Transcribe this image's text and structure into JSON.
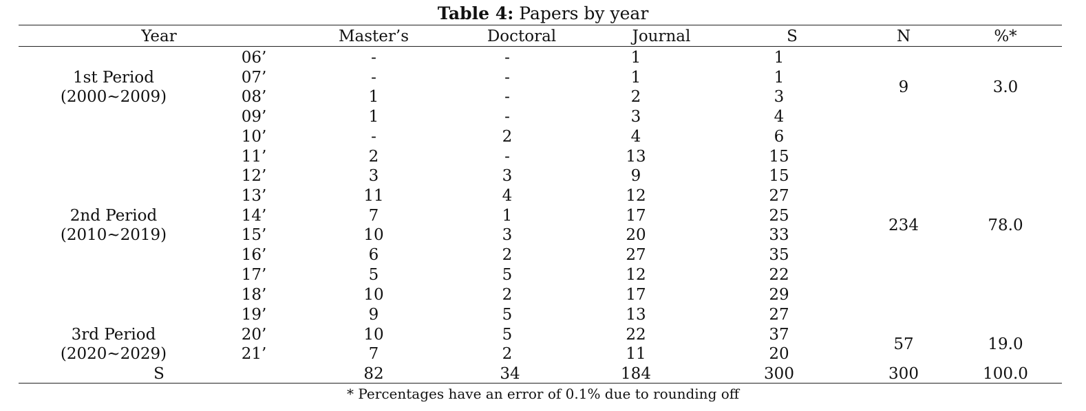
{
  "caption": {
    "label": "Table 4:",
    "title": "Papers by year"
  },
  "columns": [
    "Year",
    "Master’s",
    "Doctoral",
    "Journal",
    "S",
    "N",
    "%*"
  ],
  "periods": [
    {
      "name": "1st Period",
      "range": "(2000~2009)",
      "n": "9",
      "pct": "3.0"
    },
    {
      "name": "2nd Period",
      "range": "(2010~2019)",
      "n": "234",
      "pct": "78.0"
    },
    {
      "name": "3rd Period",
      "range": "(2020~2029)",
      "n": "57",
      "pct": "19.0"
    }
  ],
  "rows": [
    {
      "year": "06’",
      "masters": "-",
      "doctoral": "-",
      "journal": "1",
      "s": "1"
    },
    {
      "year": "07’",
      "masters": "-",
      "doctoral": "-",
      "journal": "1",
      "s": "1"
    },
    {
      "year": "08’",
      "masters": "1",
      "doctoral": "-",
      "journal": "2",
      "s": "3"
    },
    {
      "year": "09’",
      "masters": "1",
      "doctoral": "-",
      "journal": "3",
      "s": "4"
    },
    {
      "year": "10’",
      "masters": "-",
      "doctoral": "2",
      "journal": "4",
      "s": "6"
    },
    {
      "year": "11’",
      "masters": "2",
      "doctoral": "-",
      "journal": "13",
      "s": "15"
    },
    {
      "year": "12’",
      "masters": "3",
      "doctoral": "3",
      "journal": "9",
      "s": "15"
    },
    {
      "year": "13’",
      "masters": "11",
      "doctoral": "4",
      "journal": "12",
      "s": "27"
    },
    {
      "year": "14’",
      "masters": "7",
      "doctoral": "1",
      "journal": "17",
      "s": "25"
    },
    {
      "year": "15’",
      "masters": "10",
      "doctoral": "3",
      "journal": "20",
      "s": "33"
    },
    {
      "year": "16’",
      "masters": "6",
      "doctoral": "2",
      "journal": "27",
      "s": "35"
    },
    {
      "year": "17’",
      "masters": "5",
      "doctoral": "5",
      "journal": "12",
      "s": "22"
    },
    {
      "year": "18’",
      "masters": "10",
      "doctoral": "2",
      "journal": "17",
      "s": "29"
    },
    {
      "year": "19’",
      "masters": "9",
      "doctoral": "5",
      "journal": "13",
      "s": "27"
    },
    {
      "year": "20’",
      "masters": "10",
      "doctoral": "5",
      "journal": "22",
      "s": "37"
    },
    {
      "year": "21’",
      "masters": "7",
      "doctoral": "2",
      "journal": "11",
      "s": "20"
    }
  ],
  "total": {
    "label": "S",
    "masters": "82",
    "doctoral": "34",
    "journal": "184",
    "s": "300",
    "n": "300",
    "pct": "100.0"
  },
  "footnote": "* Percentages have an error of 0.1% due to rounding off"
}
